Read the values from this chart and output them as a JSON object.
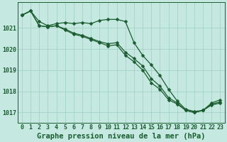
{
  "title": "Graphe pression niveau de la mer (hPa)",
  "background_color": "#c5e8e0",
  "grid_color": "#9ecfbf",
  "line_color": "#1a5c30",
  "xlim": [
    -0.5,
    23.5
  ],
  "ylim": [
    1016.5,
    1022.2
  ],
  "yticks": [
    1017,
    1018,
    1019,
    1020,
    1021
  ],
  "xticks": [
    0,
    1,
    2,
    3,
    4,
    5,
    6,
    7,
    8,
    9,
    10,
    11,
    12,
    13,
    14,
    15,
    16,
    17,
    18,
    19,
    20,
    21,
    22,
    23
  ],
  "series1": [
    1021.6,
    1021.8,
    1021.3,
    1021.1,
    1021.2,
    1021.25,
    1021.2,
    1021.25,
    1021.2,
    1021.35,
    1021.4,
    1021.4,
    1021.3,
    1020.3,
    1019.7,
    1019.25,
    1018.75,
    1018.1,
    1017.55,
    1017.15,
    1017.05,
    1017.1,
    1017.45,
    1017.6
  ],
  "series2": [
    1021.6,
    1021.8,
    1021.1,
    1021.05,
    1021.1,
    1020.95,
    1020.75,
    1020.65,
    1020.5,
    1020.35,
    1020.25,
    1020.3,
    1019.85,
    1019.55,
    1019.2,
    1018.6,
    1018.25,
    1017.7,
    1017.45,
    1017.1,
    1017.0,
    1017.1,
    1017.4,
    1017.5
  ],
  "series3": [
    1021.6,
    1021.8,
    1021.1,
    1021.05,
    1021.1,
    1020.9,
    1020.7,
    1020.6,
    1020.45,
    1020.3,
    1020.15,
    1020.2,
    1019.7,
    1019.4,
    1019.0,
    1018.4,
    1018.1,
    1017.6,
    1017.4,
    1017.1,
    1017.0,
    1017.1,
    1017.35,
    1017.45
  ],
  "markersize": 2.5,
  "linewidth": 0.9,
  "title_fontsize": 7.5,
  "tick_fontsize": 6.0,
  "ylabel_fontsize": 6.0
}
